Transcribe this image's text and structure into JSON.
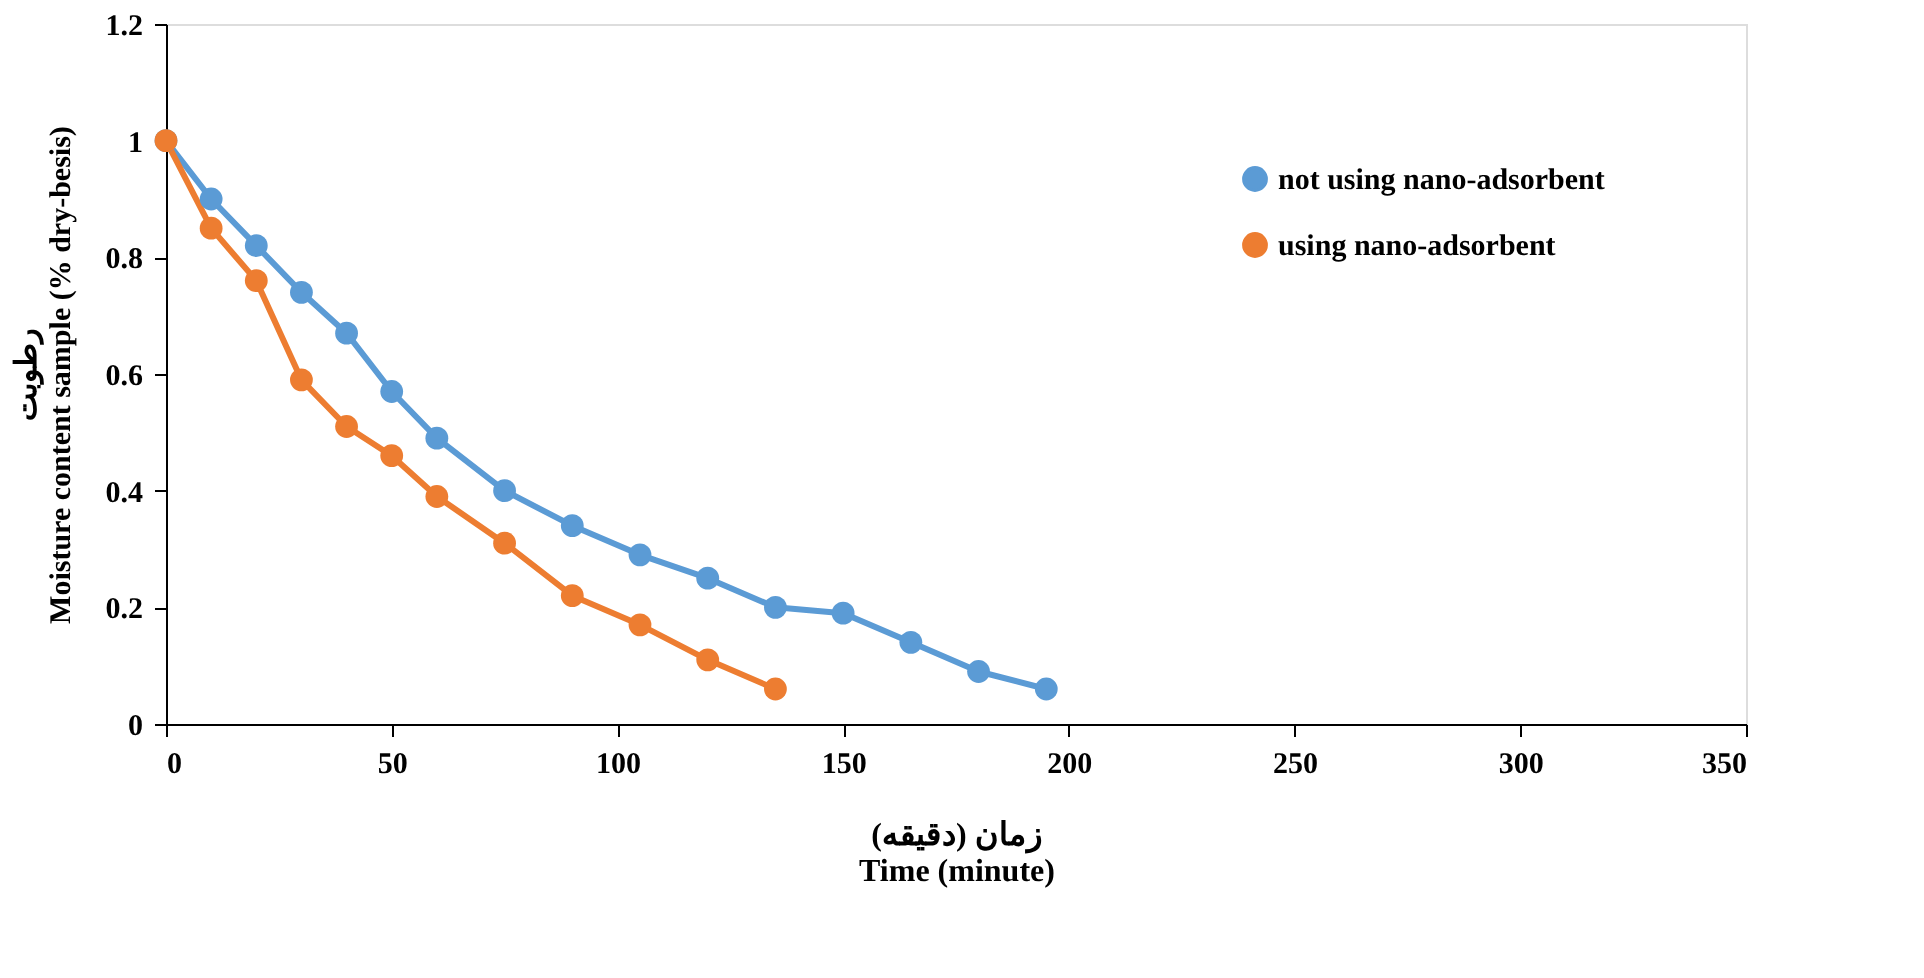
{
  "chart_data": {
    "type": "line",
    "xlabel": "زمان (دقیقه)\nTime (minute)",
    "ylabel": "رطوبت\nMoisture content  sample (% dry-besis)",
    "series": [
      {
        "name": "not using nano-adsorbent",
        "color": "#5b9bd5",
        "x": [
          0,
          10,
          20,
          30,
          40,
          50,
          60,
          75,
          90,
          105,
          120,
          135,
          150,
          165,
          180,
          195
        ],
        "values": [
          1,
          0.9,
          0.82,
          0.74,
          0.67,
          0.57,
          0.49,
          0.4,
          0.34,
          0.29,
          0.25,
          0.2,
          0.19,
          0.14,
          0.09,
          0.06
        ]
      },
      {
        "name": "using nano-adsorbent",
        "color": "#ed7d31",
        "x": [
          0,
          10,
          20,
          30,
          40,
          50,
          60,
          75,
          90,
          105,
          120,
          135
        ],
        "values": [
          1,
          0.85,
          0.76,
          0.59,
          0.51,
          0.46,
          0.39,
          0.31,
          0.22,
          0.17,
          0.11,
          0.06
        ]
      }
    ],
    "xlim": [
      0,
      350
    ],
    "xticks": [
      0,
      50,
      100,
      150,
      200,
      250,
      300,
      350
    ],
    "ylim": [
      0,
      1.2
    ],
    "yticks": [
      0,
      0.2,
      0.4,
      0.6,
      0.8,
      1,
      1.2
    ],
    "grid": false,
    "legend": "top right",
    "marker": "circle",
    "line_style": "solid"
  }
}
